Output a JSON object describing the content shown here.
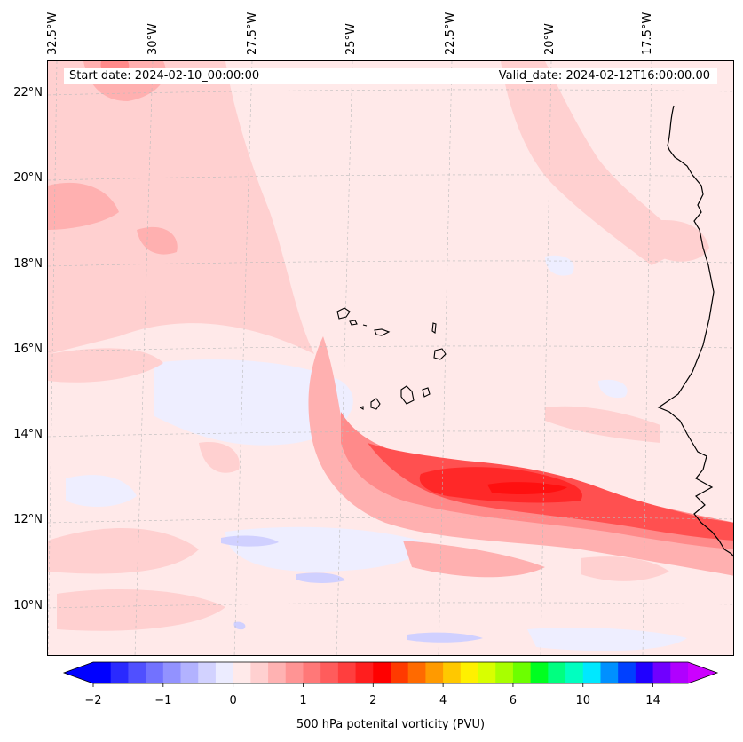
{
  "map": {
    "title_start": "Start date: 2024-02-10_00:00:00",
    "title_valid": "Valid_date: 2024-02-12T16:00:00.00",
    "longitude_labels": [
      "32.5°W",
      "30°W",
      "27.5°W",
      "25°W",
      "22.5°W",
      "20°W",
      "17.5°W"
    ],
    "latitude_labels": [
      "22°N",
      "20°N",
      "18°N",
      "16°N",
      "14°N",
      "12°N",
      "10°N"
    ],
    "field": "500 hPa potential vorticity",
    "colors": {
      "background_low": "#ffe9e9",
      "light_pink": "#ffd4d4",
      "pink": "#ffb0b0",
      "salmon": "#ff8a8a",
      "red": "#ff5050",
      "deep_red": "#ff2828",
      "pale_blue": "#eeeeff",
      "light_blue": "#d0d0ff",
      "blue": "#b0b0ff",
      "coast": "#000000"
    }
  },
  "colorbar": {
    "label": "500 hPa potenital vorticity (PVU)",
    "tick_labels": [
      "−2",
      "−1",
      "0",
      "1",
      "2",
      "4",
      "6",
      "10",
      "14"
    ],
    "levels": [
      -2,
      -1.75,
      -1.5,
      -1.25,
      -1,
      -0.75,
      -0.5,
      -0.25,
      0,
      0.25,
      0.5,
      0.75,
      1,
      1.25,
      1.5,
      1.75,
      2,
      2.5,
      3,
      3.5,
      4,
      4.5,
      5,
      5.5,
      6,
      7,
      8,
      9,
      10,
      11,
      12,
      13,
      14
    ],
    "colors": [
      "#0000ff",
      "#2a2aff",
      "#5050ff",
      "#7272ff",
      "#9292ff",
      "#b2b2ff",
      "#d2d2ff",
      "#ececff",
      "#ffeaea",
      "#ffd0d0",
      "#ffb2b2",
      "#ff9494",
      "#ff7878",
      "#ff5c5c",
      "#ff3e3e",
      "#ff1e1e",
      "#ff0000",
      "#ff3a00",
      "#ff6a00",
      "#ff9a00",
      "#ffc800",
      "#fff000",
      "#d8ff00",
      "#a8ff00",
      "#6cff00",
      "#00ff20",
      "#00ff80",
      "#00ffc0",
      "#00e8ff",
      "#0090ff",
      "#0040ff",
      "#2000ff",
      "#7000ff",
      "#b000ff"
    ],
    "extend_low_color": "#0000ff",
    "extend_high_color": "#cc00ff"
  }
}
